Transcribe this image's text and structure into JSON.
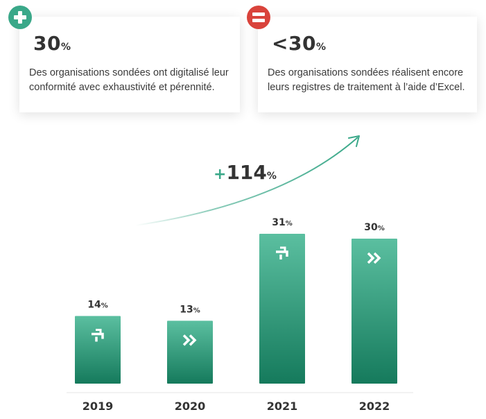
{
  "cards": {
    "left": {
      "value": "30",
      "unit": "%",
      "text": "Des organisations sondées ont digitalisé leur conformité avec exhaustivité et pérennité.",
      "badge_color": "#3aa889",
      "icon": "plus-icon"
    },
    "right": {
      "value": "<30",
      "unit": "%",
      "text": "Des organisations sondées réalisent encore leurs registres de traitement à l’aide d’Excel.",
      "badge_color": "#d9433b",
      "icon": "equals-icon"
    }
  },
  "growth": {
    "sign": "+",
    "value": "114",
    "unit": "%"
  },
  "chart_data": {
    "type": "bar",
    "categories": [
      "2019",
      "2020",
      "2021",
      "2022"
    ],
    "values": [
      14,
      13,
      31,
      30
    ],
    "value_labels": [
      "14",
      "13",
      "31",
      "30"
    ],
    "unit": "%",
    "bar_icons": [
      "trend-up-icon",
      "double-chevron-icon",
      "trend-up-icon",
      "double-chevron-icon"
    ],
    "colors": {
      "bar_top": "#5bbfa0",
      "bar_bottom": "#157a5c",
      "arrow": "#3aa889"
    },
    "ylim": [
      0,
      35
    ],
    "grid": false
  }
}
